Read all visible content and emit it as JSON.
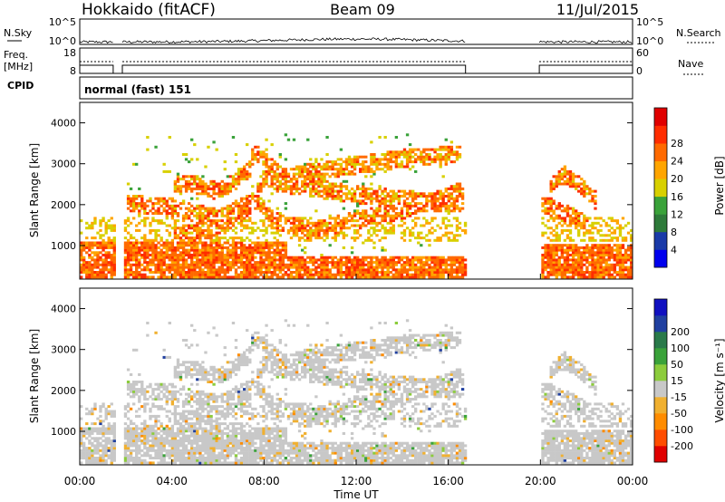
{
  "header": {
    "title": "Hokkaido (fitACF)",
    "beam": "Beam 09",
    "date": "11/Jul/2015"
  },
  "noise_panel": {
    "left_label": "N.Sky",
    "left_ticks": [
      "10^5",
      "10^0"
    ],
    "right_ticks": [
      "10^5",
      "10^0"
    ],
    "right_label": "N.Search"
  },
  "freq_panel": {
    "left_label_1": "Freq.",
    "left_label_2": "[MHz]",
    "left_ticks": [
      "18",
      "8"
    ],
    "right_ticks": [
      "60",
      "0"
    ],
    "right_label": "Nave"
  },
  "cpid_panel": {
    "label": "CPID",
    "mode": "normal (fast) 151"
  },
  "colors": {
    "power": [
      "#0000ee",
      "#1a3aa8",
      "#2e7a3a",
      "#3aa23a",
      "#d8d000",
      "#ffa500",
      "#ff6a00",
      "#ff2d00",
      "#e00000"
    ],
    "velocity": [
      "#e00000",
      "#ff4d00",
      "#ff8c00",
      "#f0b030",
      "#c8c8c8",
      "#8ccc3c",
      "#3aa23a",
      "#2a7a4a",
      "#2040a0",
      "#1010c0"
    ]
  },
  "chart_data": [
    {
      "type": "heatmap",
      "name": "power",
      "ylabel": "Slant Range [km]",
      "yticks": [
        1000,
        2000,
        3000,
        4000
      ],
      "ylim": [
        180,
        4500
      ],
      "xlim": [
        0,
        24
      ],
      "colorbar_label": "Power [dB]",
      "colorbar_ticks": [
        4,
        8,
        12,
        16,
        20,
        24,
        28
      ],
      "data_gaps_hours": [
        [
          1.45,
          1.85
        ],
        [
          16.75,
          19.95
        ]
      ]
    },
    {
      "type": "heatmap",
      "name": "velocity",
      "ylabel": "Slant Range [km]",
      "yticks": [
        1000,
        2000,
        3000,
        4000
      ],
      "ylim": [
        180,
        4500
      ],
      "xlim": [
        0,
        24
      ],
      "xlabel": "Time UT",
      "xticks": [
        "00:00",
        "04:00",
        "08:00",
        "12:00",
        "16:00",
        "20:00",
        "00:00"
      ],
      "colorbar_label": "Velocity [m s⁻¹]",
      "colorbar_ticks": [
        -200,
        -100,
        -50,
        -15,
        15,
        50,
        100,
        200
      ],
      "data_gaps_hours": [
        [
          1.45,
          1.85
        ],
        [
          16.75,
          19.95
        ]
      ]
    }
  ]
}
